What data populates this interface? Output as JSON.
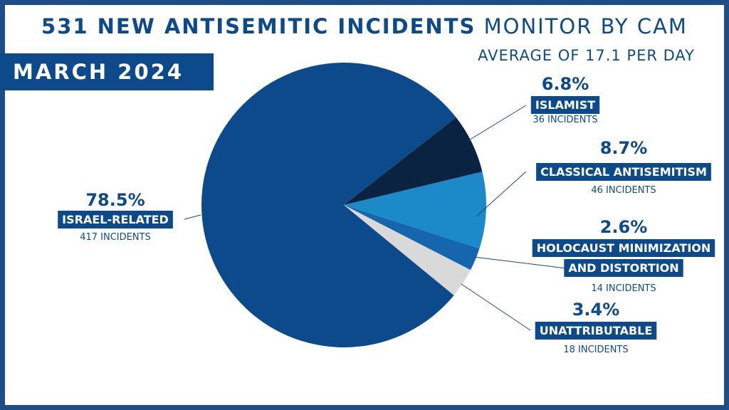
{
  "header": {
    "title_bold": "531 NEW ANTISEMITIC INCIDENTS",
    "title_light": "MONITOR BY CAM",
    "subtitle": "AVERAGE OF 17.1 PER DAY",
    "month": "MARCH 2024"
  },
  "colors": {
    "frame": "#1d4e89",
    "israel_related": "#0d4a8b",
    "islamist": "#0a2340",
    "classical_antisemitism": "#1c89c9",
    "holocaust_minimization": "#1566ad",
    "unattributable": "#d9d9d9",
    "label_box": "#0d4a8b"
  },
  "chart_data": {
    "type": "pie",
    "total": 531,
    "slices": [
      {
        "key": "islamist",
        "label_lines": [
          "ISLAMIST"
        ],
        "percent": 6.8,
        "percent_label": "6.8%",
        "incidents": 36,
        "incidents_label": "36 INCIDENTS"
      },
      {
        "key": "classical_antisemitism",
        "label_lines": [
          "CLASSICAL ANTISEMITISM"
        ],
        "percent": 8.7,
        "percent_label": "8.7%",
        "incidents": 46,
        "incidents_label": "46 INCIDENTS"
      },
      {
        "key": "holocaust_minimization",
        "label_lines": [
          "HOLOCAUST MINIMIZATION",
          "AND DISTORTION"
        ],
        "percent": 2.6,
        "percent_label": "2.6%",
        "incidents": 14,
        "incidents_label": "14 INCIDENTS"
      },
      {
        "key": "unattributable",
        "label_lines": [
          "UNATTRIBUTABLE"
        ],
        "percent": 3.4,
        "percent_label": "3.4%",
        "incidents": 18,
        "incidents_label": "18 INCIDENTS"
      },
      {
        "key": "israel_related",
        "label_lines": [
          "ISRAEL-RELATED"
        ],
        "percent": 78.5,
        "percent_label": "78.5%",
        "incidents": 417,
        "incidents_label": "417 INCIDENTS"
      }
    ]
  }
}
